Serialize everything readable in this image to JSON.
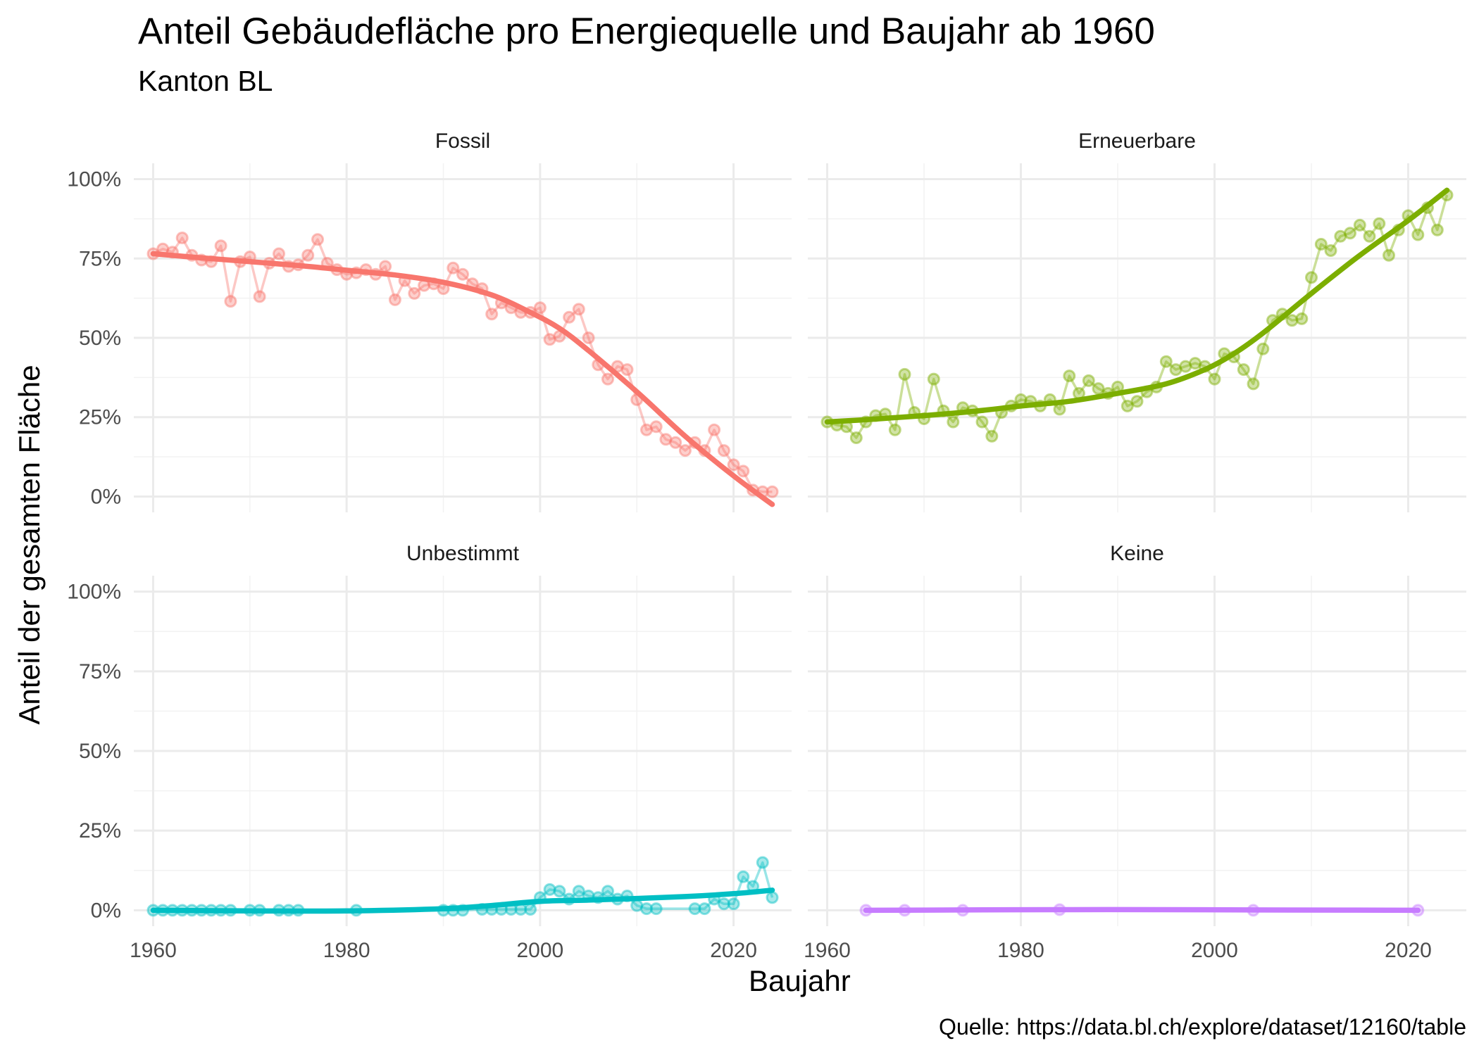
{
  "chart_data": {
    "type": "line",
    "title": "Anteil Gebäudefläche pro Energiequelle und Baujahr ab 1960",
    "subtitle": "Kanton BL",
    "xlabel": "Baujahr",
    "ylabel": "Anteil der gesamten Fläche",
    "caption": "Quelle: https://data.bl.ch/explore/dataset/12160/table",
    "xlim": [
      1958,
      2026
    ],
    "ylim": [
      -5,
      105
    ],
    "x_ticks": [
      1960,
      1980,
      2000,
      2020
    ],
    "y_ticks": [
      0,
      25,
      50,
      75,
      100
    ],
    "y_tick_labels": [
      "0%",
      "25%",
      "50%",
      "75%",
      "100%"
    ],
    "grid": true,
    "layout": "2x2 facets",
    "panels": [
      {
        "name": "Fossil",
        "color": "#F8766D",
        "points": [
          [
            1960,
            76.5
          ],
          [
            1961,
            78
          ],
          [
            1962,
            77
          ],
          [
            1963,
            81.5
          ],
          [
            1964,
            76
          ],
          [
            1965,
            74.5
          ],
          [
            1966,
            74
          ],
          [
            1967,
            79
          ],
          [
            1968,
            61.5
          ],
          [
            1969,
            74
          ],
          [
            1970,
            75.5
          ],
          [
            1971,
            63
          ],
          [
            1972,
            73.5
          ],
          [
            1973,
            76.5
          ],
          [
            1974,
            72.5
          ],
          [
            1975,
            73
          ],
          [
            1976,
            76
          ],
          [
            1977,
            81
          ],
          [
            1978,
            73.5
          ],
          [
            1979,
            71.5
          ],
          [
            1980,
            70
          ],
          [
            1981,
            70.5
          ],
          [
            1982,
            71.5
          ],
          [
            1983,
            70
          ],
          [
            1984,
            72.5
          ],
          [
            1985,
            62
          ],
          [
            1986,
            68
          ],
          [
            1987,
            64
          ],
          [
            1988,
            66.5
          ],
          [
            1989,
            67
          ],
          [
            1990,
            65.5
          ],
          [
            1991,
            72
          ],
          [
            1992,
            70
          ],
          [
            1993,
            67
          ],
          [
            1994,
            65.5
          ],
          [
            1995,
            57.5
          ],
          [
            1996,
            61
          ],
          [
            1997,
            59.5
          ],
          [
            1998,
            58
          ],
          [
            1999,
            58
          ],
          [
            2000,
            59.5
          ],
          [
            2001,
            49.5
          ],
          [
            2002,
            50.5
          ],
          [
            2003,
            56.5
          ],
          [
            2004,
            59
          ],
          [
            2005,
            50
          ],
          [
            2006,
            41.5
          ],
          [
            2007,
            37
          ],
          [
            2008,
            41
          ],
          [
            2009,
            40
          ],
          [
            2010,
            30.5
          ],
          [
            2011,
            21
          ],
          [
            2012,
            22
          ],
          [
            2013,
            18
          ],
          [
            2014,
            17
          ],
          [
            2015,
            14.5
          ],
          [
            2016,
            17
          ],
          [
            2017,
            14.5
          ],
          [
            2018,
            21
          ],
          [
            2019,
            14.5
          ],
          [
            2020,
            10
          ],
          [
            2021,
            8
          ],
          [
            2022,
            2
          ],
          [
            2023,
            1.5
          ],
          [
            2024,
            1.5
          ]
        ],
        "smooth": [
          [
            1960,
            76.5
          ],
          [
            1965,
            75.2
          ],
          [
            1970,
            74
          ],
          [
            1975,
            72.8
          ],
          [
            1980,
            71.3
          ],
          [
            1985,
            69.8
          ],
          [
            1990,
            67.5
          ],
          [
            1995,
            63.5
          ],
          [
            1999,
            58
          ],
          [
            2002,
            53
          ],
          [
            2005,
            46
          ],
          [
            2010,
            33
          ],
          [
            2015,
            19
          ],
          [
            2020,
            6.5
          ],
          [
            2024,
            -2.5
          ]
        ]
      },
      {
        "name": "Erneuerbare",
        "color": "#7CAE00",
        "points": [
          [
            1960,
            23.5
          ],
          [
            1961,
            22.5
          ],
          [
            1962,
            22
          ],
          [
            1963,
            18.5
          ],
          [
            1964,
            23.5
          ],
          [
            1965,
            25.5
          ],
          [
            1966,
            26
          ],
          [
            1967,
            21
          ],
          [
            1968,
            38.5
          ],
          [
            1969,
            26.5
          ],
          [
            1970,
            24.5
          ],
          [
            1971,
            37
          ],
          [
            1972,
            27
          ],
          [
            1973,
            23.5
          ],
          [
            1974,
            28
          ],
          [
            1975,
            27
          ],
          [
            1976,
            23.5
          ],
          [
            1977,
            19
          ],
          [
            1978,
            26.5
          ],
          [
            1979,
            28.5
          ],
          [
            1980,
            30.5
          ],
          [
            1981,
            30
          ],
          [
            1982,
            28.5
          ],
          [
            1983,
            30.5
          ],
          [
            1984,
            27.5
          ],
          [
            1985,
            38
          ],
          [
            1986,
            32.5
          ],
          [
            1987,
            36.5
          ],
          [
            1988,
            34
          ],
          [
            1989,
            32.5
          ],
          [
            1990,
            34.5
          ],
          [
            1991,
            28.5
          ],
          [
            1992,
            30
          ],
          [
            1993,
            33
          ],
          [
            1994,
            34.5
          ],
          [
            1995,
            42.5
          ],
          [
            1996,
            40
          ],
          [
            1997,
            41
          ],
          [
            1998,
            42
          ],
          [
            1999,
            41
          ],
          [
            2000,
            37
          ],
          [
            2001,
            45
          ],
          [
            2002,
            44
          ],
          [
            2003,
            40
          ],
          [
            2004,
            35.5
          ],
          [
            2005,
            46.5
          ],
          [
            2006,
            55.5
          ],
          [
            2007,
            57.5
          ],
          [
            2008,
            55.5
          ],
          [
            2009,
            56
          ],
          [
            2010,
            69
          ],
          [
            2011,
            79.5
          ],
          [
            2012,
            77.5
          ],
          [
            2013,
            82
          ],
          [
            2014,
            83
          ],
          [
            2015,
            85.5
          ],
          [
            2016,
            82
          ],
          [
            2017,
            86
          ],
          [
            2018,
            76
          ],
          [
            2019,
            84
          ],
          [
            2020,
            88.5
          ],
          [
            2021,
            82.5
          ],
          [
            2022,
            91
          ],
          [
            2023,
            84
          ],
          [
            2024,
            95
          ]
        ],
        "smooth": [
          [
            1960,
            23.5
          ],
          [
            1965,
            24.4
          ],
          [
            1970,
            25.5
          ],
          [
            1975,
            26.8
          ],
          [
            1980,
            28.5
          ],
          [
            1985,
            30
          ],
          [
            1990,
            32.5
          ],
          [
            1995,
            35.5
          ],
          [
            1999,
            40
          ],
          [
            2002,
            45
          ],
          [
            2005,
            51.5
          ],
          [
            2010,
            64
          ],
          [
            2015,
            76
          ],
          [
            2020,
            87
          ],
          [
            2024,
            96.5
          ]
        ]
      },
      {
        "name": "Unbestimmt",
        "color": "#00BFC4",
        "points": [
          [
            1960,
            0
          ],
          [
            1961,
            0
          ],
          [
            1962,
            0
          ],
          [
            1963,
            0
          ],
          [
            1964,
            0
          ],
          [
            1965,
            0
          ],
          [
            1966,
            0
          ],
          [
            1967,
            0
          ],
          [
            1968,
            0
          ],
          [
            1970,
            0
          ],
          [
            1971,
            0
          ],
          [
            1973,
            0
          ],
          [
            1974,
            0
          ],
          [
            1975,
            0
          ],
          [
            1981,
            0
          ],
          [
            1990,
            0
          ],
          [
            1991,
            0
          ],
          [
            1992,
            0
          ],
          [
            1994,
            0.3
          ],
          [
            1995,
            0.3
          ],
          [
            1996,
            0.3
          ],
          [
            1997,
            0.3
          ],
          [
            1998,
            0.3
          ],
          [
            1999,
            0.3
          ],
          [
            2000,
            4
          ],
          [
            2001,
            6.5
          ],
          [
            2002,
            6
          ],
          [
            2003,
            3.5
          ],
          [
            2004,
            6
          ],
          [
            2005,
            4.5
          ],
          [
            2006,
            4
          ],
          [
            2007,
            6
          ],
          [
            2008,
            3.5
          ],
          [
            2009,
            4.5
          ],
          [
            2010,
            1.5
          ],
          [
            2011,
            0.5
          ],
          [
            2012,
            0.5
          ],
          [
            2016,
            0.5
          ],
          [
            2017,
            0.5
          ],
          [
            2018,
            3.5
          ],
          [
            2019,
            2
          ],
          [
            2020,
            2
          ],
          [
            2021,
            10.5
          ],
          [
            2022,
            7.5
          ],
          [
            2023,
            15
          ],
          [
            2024,
            4
          ]
        ],
        "smooth": [
          [
            1960,
            0
          ],
          [
            1970,
            -0.2
          ],
          [
            1980,
            -0.2
          ],
          [
            1990,
            0.5
          ],
          [
            1995,
            1.5
          ],
          [
            2000,
            2.8
          ],
          [
            2005,
            3.2
          ],
          [
            2010,
            3.7
          ],
          [
            2015,
            4.3
          ],
          [
            2020,
            5.2
          ],
          [
            2024,
            6.3
          ]
        ]
      },
      {
        "name": "Keine",
        "color": "#C77CFF",
        "points": [
          [
            1964,
            0
          ],
          [
            1968,
            0
          ],
          [
            1974,
            0
          ],
          [
            1984,
            0.2
          ],
          [
            2004,
            0
          ],
          [
            2021,
            0
          ]
        ],
        "smooth": [
          [
            1964,
            0
          ],
          [
            1974,
            0.1
          ],
          [
            1984,
            0.2
          ],
          [
            1994,
            0.2
          ],
          [
            2004,
            0.1
          ],
          [
            2014,
            0.05
          ],
          [
            2021,
            0
          ]
        ]
      }
    ]
  }
}
